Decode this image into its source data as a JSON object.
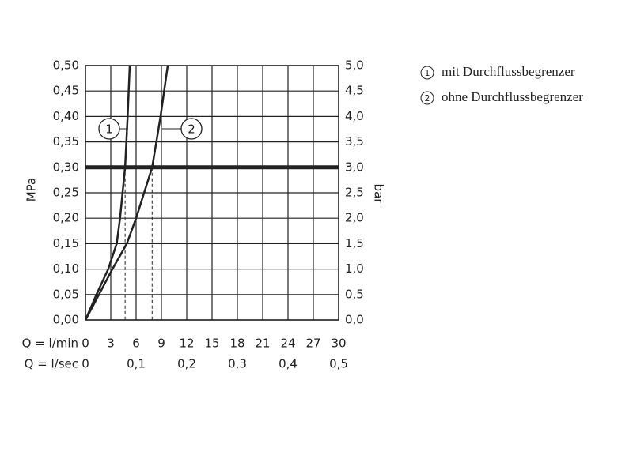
{
  "chart_data": {
    "type": "line",
    "y_label": "MPa",
    "y2_label": "bar",
    "x_row_label": "Q = l/min",
    "x2_row_label": "Q = l/sec",
    "xlim": [
      0,
      30
    ],
    "xticks": [
      0,
      3,
      6,
      9,
      12,
      15,
      18,
      21,
      24,
      27,
      30
    ],
    "x2lim": [
      0,
      0.5
    ],
    "x2ticks": [
      0,
      {
        "value": 0.1,
        "label": "0,1"
      },
      {
        "value": 0.2,
        "label": "0,2"
      },
      {
        "value": 0.3,
        "label": "0,3"
      },
      {
        "value": 0.4,
        "label": "0,4"
      },
      {
        "value": 0.5,
        "label": "0,5"
      }
    ],
    "ylim": [
      0,
      0.5
    ],
    "yticks": [
      {
        "value": 0,
        "label": "0,00"
      },
      {
        "value": 0.05,
        "label": "0,05"
      },
      {
        "value": 0.1,
        "label": "0,10"
      },
      {
        "value": 0.15,
        "label": "0,15"
      },
      {
        "value": 0.2,
        "label": "0,20"
      },
      {
        "value": 0.25,
        "label": "0,25"
      },
      {
        "value": 0.3,
        "label": "0,30"
      },
      {
        "value": 0.35,
        "label": "0,35"
      },
      {
        "value": 0.4,
        "label": "0,40"
      },
      {
        "value": 0.45,
        "label": "0,45"
      },
      {
        "value": 0.5,
        "label": "0,50"
      }
    ],
    "y2lim": [
      0,
      5
    ],
    "y2ticks": [
      {
        "value": 0,
        "label": "0,0"
      },
      {
        "value": 0.5,
        "label": "0,5"
      },
      {
        "value": 1,
        "label": "1,0"
      },
      {
        "value": 1.5,
        "label": "1,5"
      },
      {
        "value": 2,
        "label": "2,0"
      },
      {
        "value": 2.5,
        "label": "2,5"
      },
      {
        "value": 3,
        "label": "3,0"
      },
      {
        "value": 3.5,
        "label": "3,5"
      },
      {
        "value": 4,
        "label": "4,0"
      },
      {
        "value": 4.5,
        "label": "4,5"
      },
      {
        "value": 5,
        "label": "5,0"
      }
    ],
    "grid": true,
    "reference_pressure": 0.3,
    "reference_flows": [
      4.7,
      7.9
    ],
    "series": [
      {
        "name": "mit Durchflussbegrenzer",
        "marker": "1",
        "color": "#222",
        "x": [
          0,
          1.3,
          2.7,
          3.7,
          4.1,
          4.7,
          5.0,
          5.25
        ],
        "values": [
          0,
          0.05,
          0.1,
          0.15,
          0.2,
          0.3,
          0.4,
          0.5
        ]
      },
      {
        "name": "ohne Durchflussbegrenzer",
        "marker": "2",
        "color": "#222",
        "x": [
          0,
          1.6,
          3.2,
          4.9,
          6.0,
          7.9,
          8.9,
          9.75
        ],
        "values": [
          0,
          0.05,
          0.1,
          0.15,
          0.2,
          0.3,
          0.4,
          0.5
        ]
      }
    ]
  }
}
